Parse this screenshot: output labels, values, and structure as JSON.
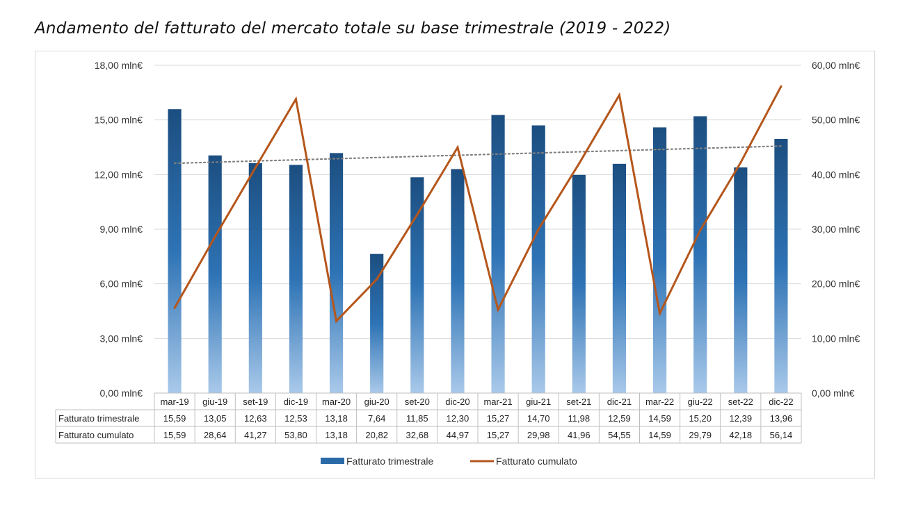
{
  "title": "Andamento del fatturato del mercato totale su base trimestrale (2019 - 2022)",
  "chart_data": {
    "type": "bar",
    "categories": [
      "mar-19",
      "giu-19",
      "set-19",
      "dic-19",
      "mar-20",
      "giu-20",
      "set-20",
      "dic-20",
      "mar-21",
      "giu-21",
      "set-21",
      "dic-21",
      "mar-22",
      "giu-22",
      "set-22",
      "dic-22"
    ],
    "series": [
      {
        "name": "Fatturato trimestrale",
        "type": "bar",
        "axis": "left",
        "color": "#1f5c99",
        "values": [
          15.59,
          13.05,
          12.63,
          12.53,
          13.18,
          7.64,
          11.85,
          12.3,
          15.27,
          14.7,
          11.98,
          12.59,
          14.59,
          15.2,
          12.39,
          13.96
        ],
        "labels": [
          "15,59",
          "13,05",
          "12,63",
          "12,53",
          "13,18",
          "7,64",
          "11,85",
          "12,30",
          "15,27",
          "14,70",
          "11,98",
          "12,59",
          "14,59",
          "15,20",
          "12,39",
          "13,96"
        ]
      },
      {
        "name": "Fatturato  cumulato",
        "type": "line",
        "axis": "right",
        "color": "#b5561b",
        "values": [
          15.59,
          28.64,
          41.27,
          53.8,
          13.18,
          20.82,
          32.68,
          44.97,
          15.27,
          29.98,
          41.96,
          54.55,
          14.59,
          29.79,
          42.18,
          56.14
        ],
        "labels": [
          "15,59",
          "28,64",
          "41,27",
          "53,80",
          "13,18",
          "20,82",
          "32,68",
          "44,97",
          "15,27",
          "29,98",
          "41,96",
          "54,55",
          "14,59",
          "29,79",
          "42,18",
          "56,14"
        ]
      }
    ],
    "trendline": {
      "series": "Fatturato trimestrale",
      "style": "dotted",
      "color": "#7f7f7f"
    },
    "y_left": {
      "ylim": [
        0,
        18
      ],
      "ticks": [
        "0,00 mln€",
        "3,00 mln€",
        "6,00 mln€",
        "9,00 mln€",
        "12,00 mln€",
        "15,00 mln€",
        "18,00 mln€"
      ]
    },
    "y_right": {
      "ylim": [
        0,
        60
      ],
      "ticks": [
        "0,00 mln€",
        "10,00 mln€",
        "20,00 mln€",
        "30,00 mln€",
        "40,00 mln€",
        "50,00 mln€",
        "60,00 mln€"
      ]
    },
    "data_table": {
      "row_labels": [
        "Fatturato trimestrale",
        "Fatturato  cumulato"
      ]
    },
    "legend": {
      "placement": "bottom",
      "entries": [
        "Fatturato trimestrale",
        "Fatturato  cumulato"
      ]
    },
    "grid": true
  }
}
